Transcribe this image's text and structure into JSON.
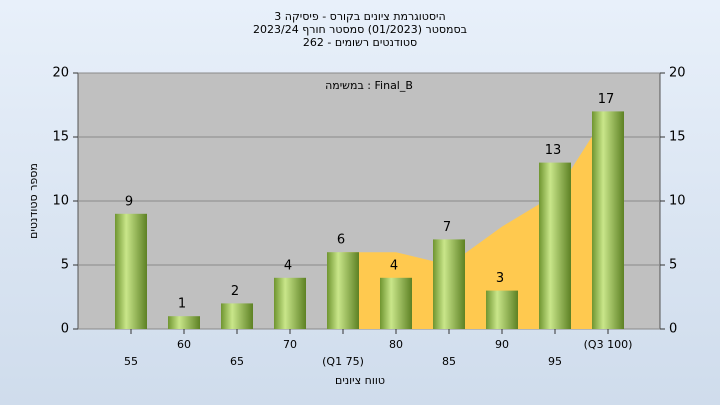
{
  "chart_data": {
    "type": "bar",
    "title": "היסטוגרמת ציונים בקורס - פיסיקה 3",
    "subtitle": "בסמסטר  (01/2023)  סמסטר חורף  2023/24",
    "subtitle2": "262 - סטודנטים רשומים",
    "annotation": "במשימה : Final_B",
    "x_label": "טווח ציונים",
    "y_label": "מספר סטודנטים",
    "categories": [
      "55",
      "60",
      "65",
      "70",
      "(Q1 75)",
      "80",
      "85",
      "90",
      "95",
      "(Q3 100)"
    ],
    "values": [
      9,
      1,
      2,
      4,
      6,
      4,
      7,
      3,
      13,
      17
    ],
    "color": "#9cc45a",
    "area": {
      "color": "#ffc94f",
      "values": [
        null,
        null,
        null,
        null,
        6,
        6,
        5,
        8,
        10.5,
        17
      ]
    },
    "ylim": [
      0,
      20
    ],
    "yticks": [
      0,
      5,
      10,
      15,
      20
    ],
    "y2lim": [
      0,
      20
    ],
    "y2ticks": [
      0,
      5,
      10,
      15,
      20
    ],
    "grid": true
  }
}
